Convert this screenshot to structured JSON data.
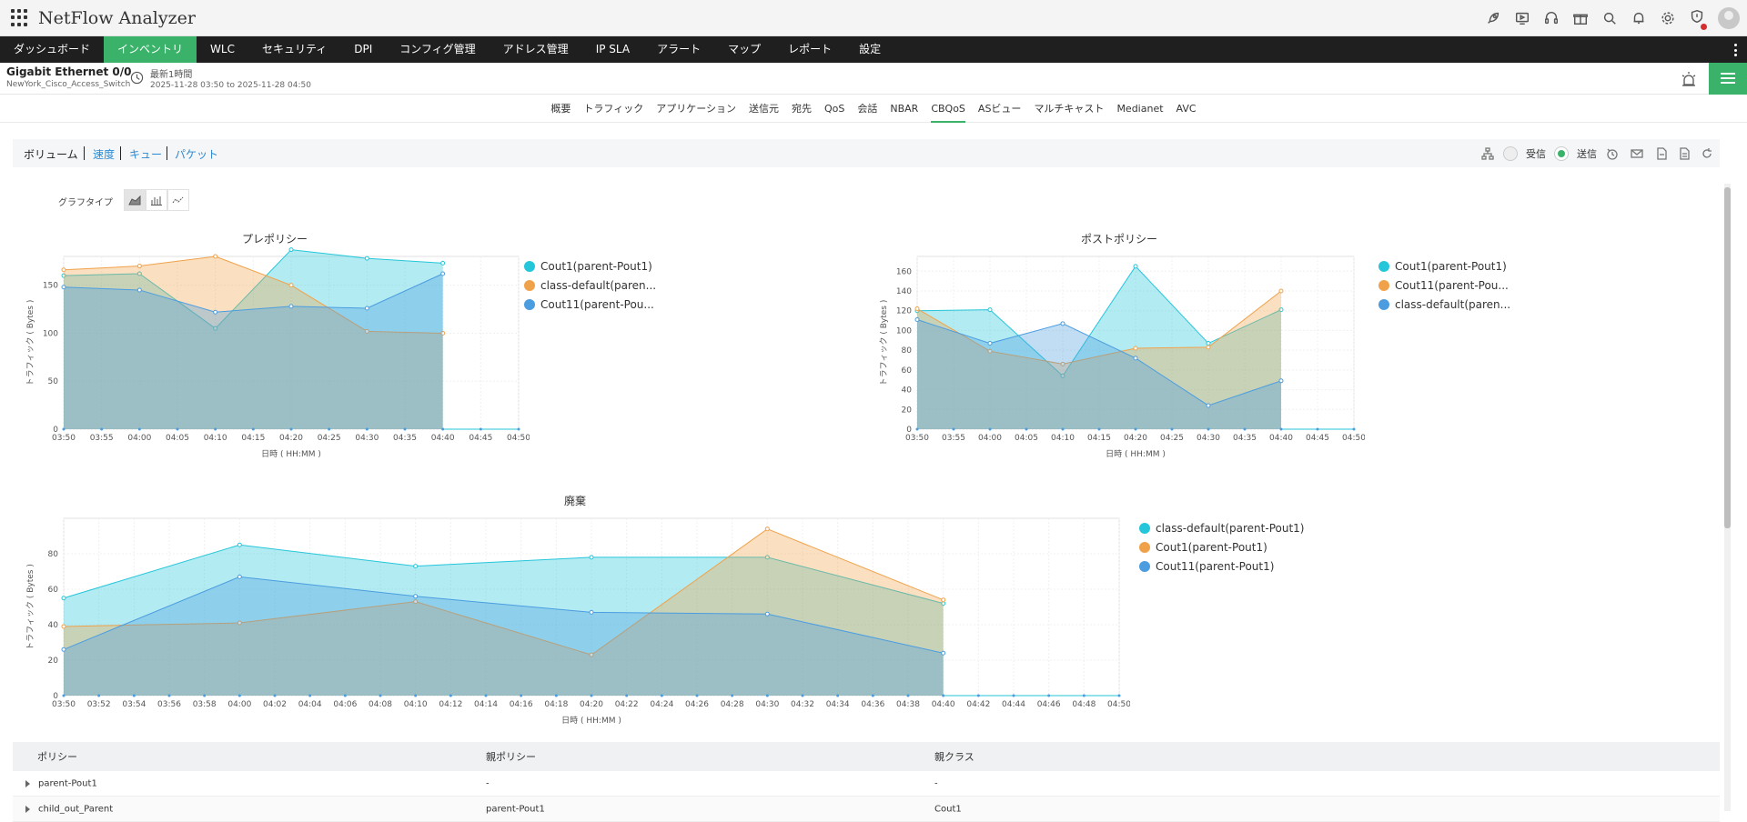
{
  "app": {
    "title": "NetFlow Analyzer"
  },
  "topIcons": [
    "rocket-icon",
    "monitor-play-icon",
    "headset-icon",
    "gift-icon",
    "search-icon",
    "bell-icon",
    "gear-icon",
    "shield-alert-icon",
    "avatar"
  ],
  "nav": {
    "items": [
      "ダッシュボード",
      "インベントリ",
      "WLC",
      "セキュリティ",
      "DPI",
      "コンフィグ管理",
      "アドレス管理",
      "IP SLA",
      "アラート",
      "マップ",
      "レポート",
      "設定"
    ],
    "active": 1
  },
  "device": {
    "name": "Gigabit Ethernet 0/0",
    "host": "NewYork_Cisco_Access_Switch",
    "range": "最新1時間",
    "dates": "2025-11-28 03:50 to 2025-11-28 04:50"
  },
  "subtabs": {
    "items": [
      "概要",
      "トラフィック",
      "アプリケーション",
      "送信元",
      "宛先",
      "QoS",
      "会話",
      "NBAR",
      "CBQoS",
      "ASビュー",
      "マルチキャスト",
      "Medianet",
      "AVC"
    ],
    "active": 8
  },
  "viewTabs": [
    "ボリューム",
    "速度",
    "キュー",
    "パケット"
  ],
  "toolbar": {
    "receive": "受信",
    "send": "送信"
  },
  "graphType": {
    "label": "グラフタイプ"
  },
  "colors": {
    "cyan": "#26c6da",
    "orange": "#f0a24a",
    "blue": "#4b9de0",
    "green": "#3ab26a",
    "navbar": "#1f1f1f"
  },
  "chart_data": [
    {
      "type": "area",
      "title": "プレポリシー",
      "xlabel": "日時 ( HH:MM )",
      "ylabel": "トラフィック ( Bytes )",
      "x": [
        "03:50",
        "03:55",
        "04:00",
        "04:05",
        "04:10",
        "04:15",
        "04:20",
        "04:25",
        "04:30",
        "04:35",
        "04:40",
        "04:45",
        "04:50"
      ],
      "ylim": [
        0,
        180
      ],
      "yticks": [
        0,
        50,
        100,
        150
      ],
      "series": [
        {
          "name": "Cout1(parent-Pout1)",
          "color": "#26c6da",
          "x": [
            "03:50",
            "04:00",
            "04:10",
            "04:20",
            "04:30",
            "04:40"
          ],
          "values": [
            160,
            162,
            105,
            187,
            178,
            173
          ]
        },
        {
          "name": "class-default(paren...",
          "color": "#f0a24a",
          "x": [
            "03:50",
            "04:00",
            "04:10",
            "04:20",
            "04:30",
            "04:40"
          ],
          "values": [
            166,
            170,
            180,
            150,
            102,
            100
          ]
        },
        {
          "name": "Cout11(parent-Pou...",
          "color": "#4b9de0",
          "x": [
            "03:50",
            "04:00",
            "04:10",
            "04:20",
            "04:30",
            "04:40"
          ],
          "values": [
            148,
            145,
            122,
            128,
            126,
            162
          ]
        }
      ]
    },
    {
      "type": "area",
      "title": "ポストポリシー",
      "xlabel": "日時 ( HH:MM )",
      "ylabel": "トラフィック ( Bytes )",
      "x": [
        "03:50",
        "03:55",
        "04:00",
        "04:05",
        "04:10",
        "04:15",
        "04:20",
        "04:25",
        "04:30",
        "04:35",
        "04:40",
        "04:45",
        "04:50"
      ],
      "ylim": [
        0,
        175
      ],
      "yticks": [
        0,
        20,
        40,
        60,
        80,
        100,
        120,
        140,
        160
      ],
      "series": [
        {
          "name": "Cout1(parent-Pout1)",
          "color": "#26c6da",
          "x": [
            "03:50",
            "04:00",
            "04:10",
            "04:20",
            "04:30",
            "04:40"
          ],
          "values": [
            120,
            121,
            54,
            165,
            87,
            121
          ]
        },
        {
          "name": "Cout11(parent-Pou...",
          "color": "#f0a24a",
          "x": [
            "03:50",
            "04:00",
            "04:10",
            "04:20",
            "04:30",
            "04:40"
          ],
          "values": [
            122,
            79,
            66,
            82,
            83,
            140
          ]
        },
        {
          "name": "class-default(paren...",
          "color": "#4b9de0",
          "x": [
            "03:50",
            "04:00",
            "04:10",
            "04:20",
            "04:30",
            "04:40"
          ],
          "values": [
            111,
            87,
            107,
            72,
            24,
            49
          ]
        }
      ]
    },
    {
      "type": "area",
      "title": "廃棄",
      "xlabel": "日時 ( HH:MM )",
      "ylabel": "トラフィック ( Bytes )",
      "x": [
        "03:50",
        "03:52",
        "03:54",
        "03:56",
        "03:58",
        "04:00",
        "04:02",
        "04:04",
        "04:06",
        "04:08",
        "04:10",
        "04:12",
        "04:14",
        "04:16",
        "04:18",
        "04:20",
        "04:22",
        "04:24",
        "04:26",
        "04:28",
        "04:30",
        "04:32",
        "04:34",
        "04:36",
        "04:38",
        "04:40",
        "04:42",
        "04:44",
        "04:46",
        "04:48",
        "04:50"
      ],
      "ylim": [
        0,
        100
      ],
      "yticks": [
        0,
        20,
        40,
        60,
        80
      ],
      "series": [
        {
          "name": "class-default(parent-Pout1)",
          "color": "#26c6da",
          "x": [
            "03:50",
            "04:00",
            "04:10",
            "04:20",
            "04:30",
            "04:40"
          ],
          "values": [
            55,
            85,
            73,
            78,
            78,
            52
          ]
        },
        {
          "name": "Cout1(parent-Pout1)",
          "color": "#f0a24a",
          "x": [
            "03:50",
            "04:00",
            "04:10",
            "04:20",
            "04:30",
            "04:40"
          ],
          "values": [
            39,
            41,
            53,
            23,
            94,
            54
          ]
        },
        {
          "name": "Cout11(parent-Pout1)",
          "color": "#4b9de0",
          "x": [
            "03:50",
            "04:00",
            "04:10",
            "04:20",
            "04:30",
            "04:40"
          ],
          "values": [
            26,
            67,
            56,
            47,
            46,
            24
          ]
        }
      ]
    }
  ],
  "policyTable": {
    "headers": [
      "ポリシー",
      "親ポリシー",
      "親クラス"
    ],
    "rows": [
      [
        "parent-Pout1",
        "-",
        "-"
      ],
      [
        "child_out_Parent",
        "parent-Pout1",
        "Cout1"
      ]
    ]
  }
}
